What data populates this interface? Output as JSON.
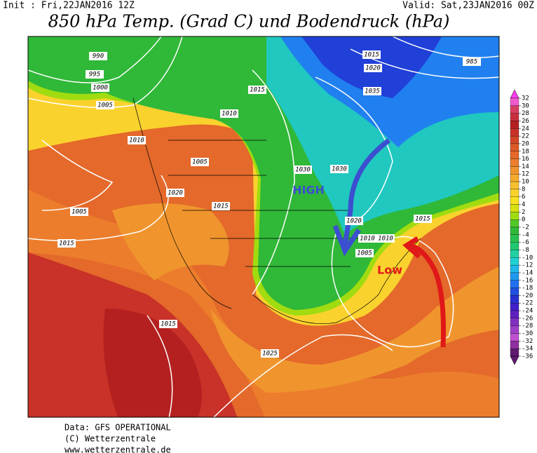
{
  "header": {
    "init": "Init : Fri,22JAN2016 12Z",
    "valid": "Valid: Sat,23JAN2016 00Z",
    "title": "850 hPa Temp. (Grad C) und Bodendruck (hPa)"
  },
  "legend": {
    "ticks": [
      32,
      30,
      28,
      26,
      24,
      22,
      20,
      18,
      16,
      14,
      12,
      10,
      8,
      6,
      4,
      2,
      0,
      -2,
      -4,
      -6,
      -8,
      -10,
      -12,
      -14,
      -16,
      -18,
      -20,
      -22,
      -24,
      -26,
      -28,
      -30,
      -32,
      -34,
      -36
    ],
    "colors": [
      "#ff3cf0",
      "#f05ad0",
      "#d84060",
      "#c83040",
      "#b42020",
      "#c83228",
      "#d24626",
      "#dc5a28",
      "#e4692a",
      "#ec7d2c",
      "#f0952e",
      "#f5aa30",
      "#f8c030",
      "#fad22e",
      "#f8e020",
      "#d8e010",
      "#a0dc10",
      "#50c828",
      "#30b838",
      "#28c050",
      "#20c870",
      "#20d0a0",
      "#20d0d0",
      "#20b8e8",
      "#2098f0",
      "#2070f0",
      "#2050e0",
      "#2830d0",
      "#4020c8",
      "#6020c0",
      "#8030c0",
      "#a040c8",
      "#c050d0",
      "#9030a0",
      "#601a70"
    ]
  },
  "isobar_labels": [
    "990",
    "995",
    "1000",
    "1005",
    "1010",
    "1010",
    "1005",
    "1020",
    "1015",
    "1005",
    "1015",
    "1015",
    "1025",
    "1015",
    "1020",
    "1030",
    "1030",
    "1035",
    "1015",
    "1020",
    "1015",
    "1010",
    "1005",
    "985",
    "1010"
  ],
  "annotations": {
    "high": "HIGH",
    "low": "Low"
  },
  "footer": [
    "Data: GFS OPERATIONAL",
    "(C) Wetterzentrale",
    "www.wetterzentrale.de"
  ]
}
